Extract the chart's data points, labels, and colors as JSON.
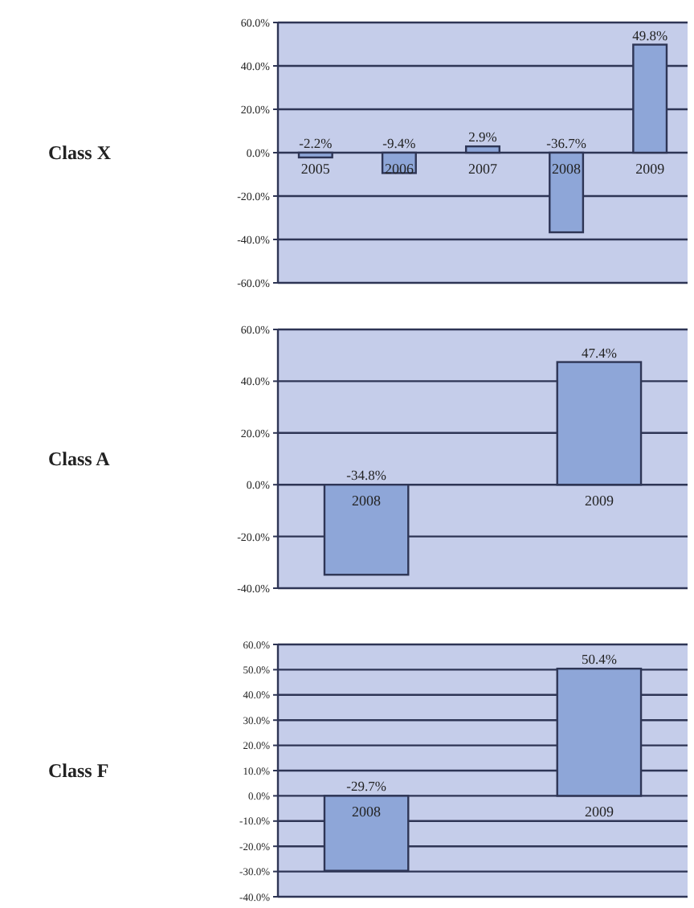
{
  "chart_data": [
    {
      "type": "bar",
      "ylabel": "Class X",
      "categories": [
        "2005",
        "2006",
        "2007",
        "2008",
        "2009"
      ],
      "values": [
        -2.2,
        -9.4,
        2.9,
        -36.7,
        49.8
      ],
      "value_labels": [
        "-2.2%",
        "-9.4%",
        "2.9%",
        "-36.7%",
        "49.8%"
      ],
      "color": "#8ea6d8",
      "ylim": [
        -60,
        60
      ],
      "yticks": [
        {
          "value": 60,
          "label": "60.0%"
        },
        {
          "value": 40,
          "label": "40.0%"
        },
        {
          "value": 20,
          "label": "20.0%"
        },
        {
          "value": 0,
          "label": "0.0%"
        },
        {
          "value": -20,
          "label": "-20.0%"
        },
        {
          "value": -40,
          "label": "-40.0%"
        },
        {
          "value": -60,
          "label": "-60.0%"
        }
      ],
      "grid": "y"
    },
    {
      "type": "bar",
      "ylabel": "Class A",
      "categories": [
        "2008",
        "2009"
      ],
      "values": [
        -34.8,
        47.4
      ],
      "value_labels": [
        "-34.8%",
        "47.4%"
      ],
      "color": "#8ea6d8",
      "ylim": [
        -40,
        60
      ],
      "yticks": [
        {
          "value": 60,
          "label": "60.0%"
        },
        {
          "value": 40,
          "label": "40.0%"
        },
        {
          "value": 20,
          "label": "20.0%"
        },
        {
          "value": 0,
          "label": "0.0%"
        },
        {
          "value": -20,
          "label": "-20.0%"
        },
        {
          "value": -40,
          "label": "-40.0%"
        }
      ],
      "grid": "y"
    },
    {
      "type": "bar",
      "ylabel": "Class F",
      "categories": [
        "2008",
        "2009"
      ],
      "values": [
        -29.7,
        50.4
      ],
      "value_labels": [
        "-29.7%",
        "50.4%"
      ],
      "color": "#8ea6d8",
      "ylim": [
        -40,
        60
      ],
      "yticks": [
        {
          "value": 60,
          "label": "60.0%"
        },
        {
          "value": 50,
          "label": "50.0%"
        },
        {
          "value": 40,
          "label": "40.0%"
        },
        {
          "value": 30,
          "label": "30.0%"
        },
        {
          "value": 20,
          "label": "20.0%"
        },
        {
          "value": 10,
          "label": "10.0%"
        },
        {
          "value": 0,
          "label": "0.0%"
        },
        {
          "value": -10,
          "label": "-10.0%"
        },
        {
          "value": -20,
          "label": "-20.0%"
        },
        {
          "value": -30,
          "label": "-30.0%"
        },
        {
          "value": -40,
          "label": "-40.0%"
        }
      ],
      "grid": "y"
    }
  ]
}
